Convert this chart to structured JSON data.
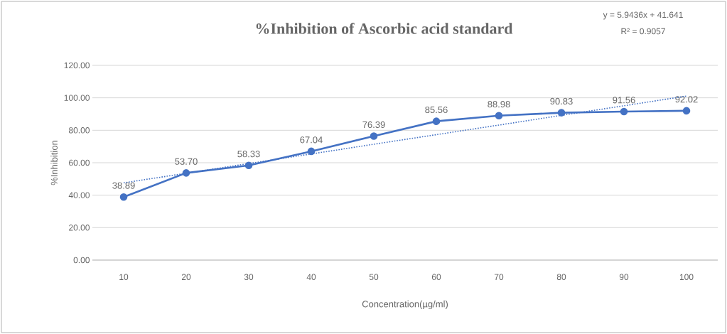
{
  "chart_data": {
    "type": "line",
    "title": "%Inhibition of Ascorbic acid standard",
    "xlabel": "Concentration(µg/ml)",
    "ylabel": "%Inhibition",
    "annotations": [
      "y = 5.9436x + 41.641",
      "R² = 0.9057"
    ],
    "categories": [
      "10",
      "20",
      "30",
      "40",
      "50",
      "60",
      "70",
      "80",
      "90",
      "100"
    ],
    "series": [
      {
        "color": "#4472c4",
        "values": [
          38.89,
          53.7,
          58.33,
          67.04,
          76.39,
          85.56,
          88.98,
          90.83,
          91.56,
          92.02
        ],
        "marker": "circle",
        "line_style": "solid",
        "value_labels": [
          "38.89",
          "53.70",
          "58.33",
          "67.04",
          "76.39",
          "85.56",
          "88.98",
          "90.83",
          "91.56",
          "92.02"
        ]
      },
      {
        "color": "#4472c4",
        "values": [
          47.6,
          53.5,
          59.5,
          65.4,
          71.4,
          77.3,
          83.2,
          89.2,
          95.1,
          101.1
        ],
        "marker": "none",
        "line_style": "dotted"
      }
    ],
    "ylim": [
      0,
      120
    ],
    "yticks": [
      {
        "value": 0,
        "label": "0.00"
      },
      {
        "value": 20,
        "label": "20.00"
      },
      {
        "value": 40,
        "label": "40.00"
      },
      {
        "value": 60,
        "label": "60.00"
      },
      {
        "value": 80,
        "label": "80.00"
      },
      {
        "value": 100,
        "label": "100.00"
      },
      {
        "value": 120,
        "label": "120.00"
      }
    ],
    "grid": "y"
  }
}
